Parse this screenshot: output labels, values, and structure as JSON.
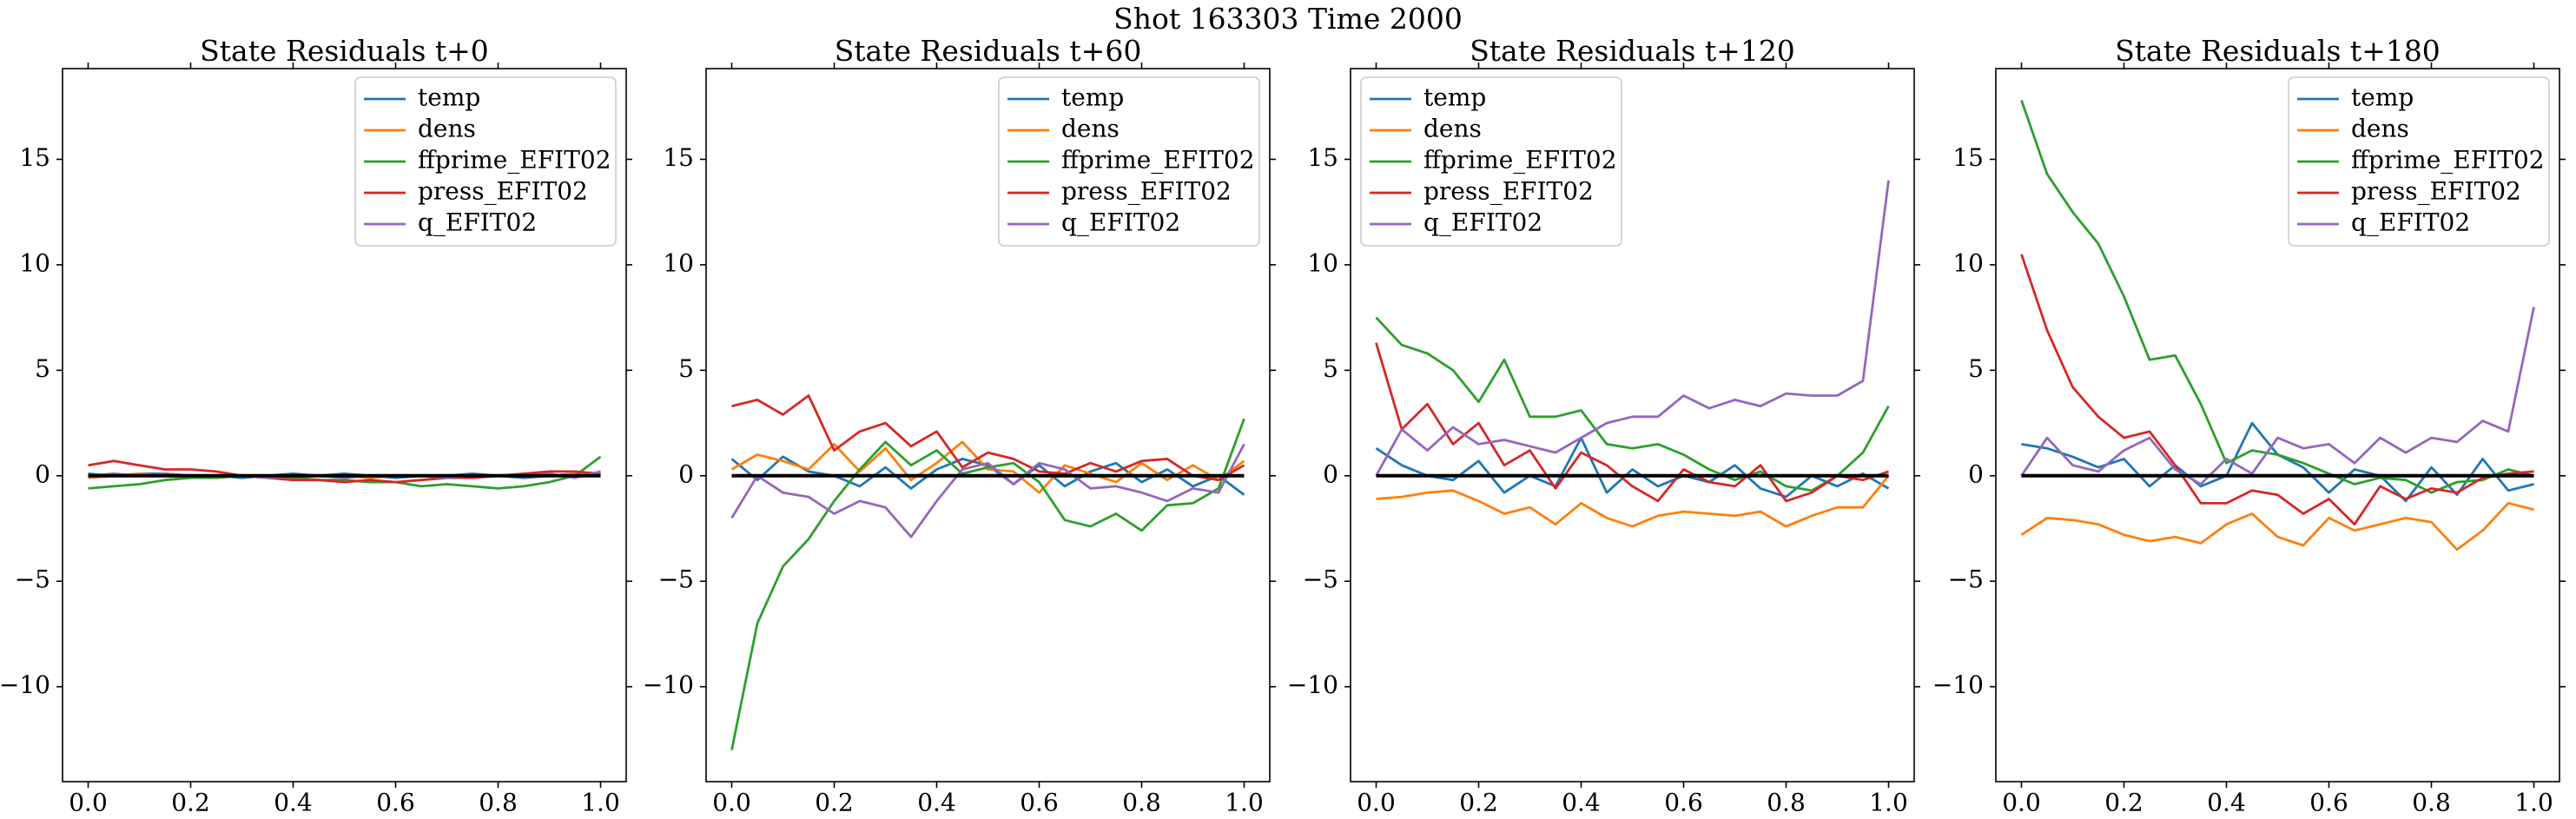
{
  "title": "Shot 163303   Time 2000",
  "chart_data": [
    {
      "type": "line",
      "title": "State Residuals t+0",
      "legend": "upper right",
      "x": [
        0,
        0.05,
        0.1,
        0.15,
        0.2,
        0.25,
        0.3,
        0.35,
        0.4,
        0.45,
        0.5,
        0.55,
        0.6,
        0.65,
        0.7,
        0.75,
        0.8,
        0.85,
        0.9,
        0.95,
        1
      ],
      "xlim": [
        -0.05,
        1.05
      ],
      "xticks": [
        {
          "value": 0,
          "label": "0.0"
        },
        0.2,
        0.4,
        0.6,
        0.8,
        {
          "value": 1,
          "label": "1.0"
        }
      ],
      "ylim": [
        -14.5,
        19.3
      ],
      "yticks": [
        {
          "value": -10,
          "label": "−10"
        },
        {
          "value": -5,
          "label": "−5"
        },
        0,
        5,
        10,
        15
      ],
      "reference_line": {
        "y": 0,
        "color": "#000000"
      },
      "series": [
        {
          "name": "temp",
          "color": "#1f77b4",
          "values": [
            0.1,
            0,
            0.1,
            0.1,
            0,
            0,
            -0.1,
            0,
            0.1,
            0,
            0.1,
            0,
            -0.1,
            0,
            0,
            0.1,
            0,
            -0.1,
            0,
            0.1,
            0
          ]
        },
        {
          "name": "dens",
          "color": "#ff7f0e",
          "values": [
            -0.1,
            0,
            0.1,
            0,
            0,
            -0.1,
            0,
            0,
            -0.1,
            0,
            0,
            -0.1,
            0,
            0,
            0,
            -0.1,
            0,
            0,
            0,
            0.1,
            0.1
          ]
        },
        {
          "name": "ffprime_EFIT02",
          "color": "#2ca02c",
          "values": [
            -0.6,
            -0.5,
            -0.4,
            -0.2,
            -0.1,
            -0.1,
            0,
            0,
            -0.1,
            -0.2,
            -0.2,
            -0.3,
            -0.3,
            -0.5,
            -0.4,
            -0.5,
            -0.6,
            -0.5,
            -0.3,
            0,
            0.9
          ]
        },
        {
          "name": "press_EFIT02",
          "color": "#d62728",
          "values": [
            0.5,
            0.7,
            0.5,
            0.3,
            0.3,
            0.2,
            0,
            -0.1,
            -0.2,
            -0.2,
            -0.3,
            -0.2,
            -0.3,
            -0.2,
            -0.1,
            -0.1,
            0,
            0.1,
            0.2,
            0.2,
            0.1
          ]
        },
        {
          "name": "q_EFIT02",
          "color": "#9467bd",
          "values": [
            0,
            0.1,
            0,
            0.1,
            0,
            0,
            0,
            -0.1,
            0,
            0,
            -0.1,
            0,
            0,
            0,
            -0.1,
            0,
            0,
            0,
            0.1,
            -0.1,
            0.2
          ]
        }
      ]
    },
    {
      "type": "line",
      "title": "State Residuals t+60",
      "legend": "upper right",
      "x": [
        0,
        0.05,
        0.1,
        0.15,
        0.2,
        0.25,
        0.3,
        0.35,
        0.4,
        0.45,
        0.5,
        0.55,
        0.6,
        0.65,
        0.7,
        0.75,
        0.8,
        0.85,
        0.9,
        0.95,
        1
      ],
      "xlim": [
        -0.05,
        1.05
      ],
      "xticks": [
        {
          "value": 0,
          "label": "0.0"
        },
        0.2,
        0.4,
        0.6,
        0.8,
        {
          "value": 1,
          "label": "1.0"
        }
      ],
      "ylim": [
        -14.5,
        19.3
      ],
      "yticks": [
        {
          "value": -10,
          "label": "−10"
        },
        {
          "value": -5,
          "label": "−5"
        },
        0,
        5,
        10,
        15
      ],
      "reference_line": {
        "y": 0,
        "color": "#000000"
      },
      "series": [
        {
          "name": "temp",
          "color": "#1f77b4",
          "values": [
            0.8,
            -0.2,
            0.9,
            0.2,
            0,
            -0.5,
            0.4,
            -0.6,
            0.3,
            0.8,
            0.5,
            -0.4,
            0.5,
            -0.5,
            0.2,
            0.6,
            -0.3,
            0.3,
            -0.5,
            0,
            -0.9
          ]
        },
        {
          "name": "dens",
          "color": "#ff7f0e",
          "values": [
            0.3,
            1.0,
            0.7,
            0.3,
            1.5,
            0.2,
            1.3,
            -0.2,
            0.6,
            1.6,
            0.3,
            0.2,
            -0.8,
            0.5,
            0.1,
            -0.3,
            0.6,
            -0.2,
            0.5,
            -0.2,
            0.7
          ]
        },
        {
          "name": "ffprime_EFIT02",
          "color": "#2ca02c",
          "values": [
            -13,
            -7,
            -4.3,
            -3,
            -1.2,
            0.3,
            1.6,
            0.5,
            1.2,
            0.1,
            0.4,
            0.6,
            -0.3,
            -2.1,
            -2.4,
            -1.8,
            -2.6,
            -1.4,
            -1.3,
            -0.6,
            2.7
          ]
        },
        {
          "name": "press_EFIT02",
          "color": "#d62728",
          "values": [
            3.3,
            3.6,
            2.9,
            3.8,
            1.2,
            2.1,
            2.5,
            1.4,
            2.1,
            0.4,
            1.1,
            0.8,
            0.2,
            0.1,
            0.6,
            0.2,
            0.7,
            0.8,
            0,
            -0.2,
            0.5
          ]
        },
        {
          "name": "q_EFIT02",
          "color": "#9467bd",
          "values": [
            -2,
            0,
            -0.8,
            -1,
            -1.8,
            -1.2,
            -1.5,
            -2.9,
            -1.2,
            0.3,
            0.6,
            -0.4,
            0.6,
            0.3,
            -0.6,
            -0.5,
            -0.8,
            -1.2,
            -0.6,
            -0.8,
            1.5
          ]
        }
      ]
    },
    {
      "type": "line",
      "title": "State Residuals t+120",
      "legend": "upper left",
      "x": [
        0,
        0.05,
        0.1,
        0.15,
        0.2,
        0.25,
        0.3,
        0.35,
        0.4,
        0.45,
        0.5,
        0.55,
        0.6,
        0.65,
        0.7,
        0.75,
        0.8,
        0.85,
        0.9,
        0.95,
        1
      ],
      "xlim": [
        -0.05,
        1.05
      ],
      "xticks": [
        {
          "value": 0,
          "label": "0.0"
        },
        0.2,
        0.4,
        0.6,
        0.8,
        {
          "value": 1,
          "label": "1.0"
        }
      ],
      "ylim": [
        -14.5,
        19.3
      ],
      "yticks": [
        {
          "value": -10,
          "label": "−10"
        },
        {
          "value": -5,
          "label": "−5"
        },
        0,
        5,
        10,
        15
      ],
      "reference_line": {
        "y": 0,
        "color": "#000000"
      },
      "series": [
        {
          "name": "temp",
          "color": "#1f77b4",
          "values": [
            1.3,
            0.5,
            0,
            -0.2,
            0.7,
            -0.8,
            0,
            -0.5,
            1.8,
            -0.8,
            0.3,
            -0.5,
            0,
            -0.3,
            0.5,
            -0.6,
            -1,
            0,
            -0.5,
            0.1,
            -0.6
          ]
        },
        {
          "name": "dens",
          "color": "#ff7f0e",
          "values": [
            -1.1,
            -1.0,
            -0.8,
            -0.7,
            -1.2,
            -1.8,
            -1.5,
            -2.3,
            -1.3,
            -2.0,
            -2.4,
            -1.9,
            -1.7,
            -1.8,
            -1.9,
            -1.7,
            -2.4,
            -1.9,
            -1.5,
            -1.5,
            0
          ]
        },
        {
          "name": "ffprime_EFIT02",
          "color": "#2ca02c",
          "values": [
            7.5,
            6.2,
            5.8,
            5.0,
            3.5,
            5.5,
            2.8,
            2.8,
            3.1,
            1.5,
            1.3,
            1.5,
            1.0,
            0.3,
            -0.2,
            0.2,
            -0.5,
            -0.7,
            0,
            1.1,
            3.3
          ]
        },
        {
          "name": "press_EFIT02",
          "color": "#d62728",
          "values": [
            6.3,
            2.2,
            3.4,
            1.5,
            2.5,
            0.5,
            1.2,
            -0.6,
            1.1,
            0.5,
            -0.5,
            -1.2,
            0.3,
            -0.3,
            -0.5,
            0.5,
            -1.2,
            -0.8,
            0,
            -0.2,
            0.2
          ]
        },
        {
          "name": "q_EFIT02",
          "color": "#9467bd",
          "values": [
            0,
            2.2,
            1.2,
            2.3,
            1.5,
            1.7,
            1.4,
            1.1,
            1.8,
            2.5,
            2.8,
            2.8,
            3.8,
            3.2,
            3.6,
            3.3,
            3.9,
            3.8,
            3.8,
            4.5,
            14
          ]
        }
      ]
    },
    {
      "type": "line",
      "title": "State Residuals t+180",
      "legend": "upper right",
      "x": [
        0,
        0.05,
        0.1,
        0.15,
        0.2,
        0.25,
        0.3,
        0.35,
        0.4,
        0.45,
        0.5,
        0.55,
        0.6,
        0.65,
        0.7,
        0.75,
        0.8,
        0.85,
        0.9,
        0.95,
        1
      ],
      "xlim": [
        -0.05,
        1.05
      ],
      "xticks": [
        {
          "value": 0,
          "label": "0.0"
        },
        0.2,
        0.4,
        0.6,
        0.8,
        {
          "value": 1,
          "label": "1.0"
        }
      ],
      "ylim": [
        -14.5,
        19.3
      ],
      "yticks": [
        {
          "value": -10,
          "label": "−10"
        },
        {
          "value": -5,
          "label": "−5"
        },
        0,
        5,
        10,
        15
      ],
      "reference_line": {
        "y": 0,
        "color": "#000000"
      },
      "series": [
        {
          "name": "temp",
          "color": "#1f77b4",
          "values": [
            1.5,
            1.3,
            0.9,
            0.4,
            0.8,
            -0.5,
            0.5,
            -0.5,
            0,
            2.5,
            1.0,
            0.4,
            -0.8,
            0.3,
            0,
            -1.2,
            0.4,
            -0.9,
            0.8,
            -0.7,
            -0.4
          ]
        },
        {
          "name": "dens",
          "color": "#ff7f0e",
          "values": [
            -2.8,
            -2.0,
            -2.1,
            -2.3,
            -2.8,
            -3.1,
            -2.9,
            -3.2,
            -2.3,
            -1.8,
            -2.9,
            -3.3,
            -2.0,
            -2.6,
            -2.3,
            -2.0,
            -2.2,
            -3.5,
            -2.6,
            -1.3,
            -1.6
          ]
        },
        {
          "name": "ffprime_EFIT02",
          "color": "#2ca02c",
          "values": [
            17.8,
            14.3,
            12.5,
            11.0,
            8.5,
            5.5,
            5.7,
            3.4,
            0.6,
            1.2,
            1.0,
            0.6,
            0.1,
            -0.4,
            -0.1,
            -0.2,
            -0.8,
            -0.3,
            -0.2,
            0.3,
            0
          ]
        },
        {
          "name": "press_EFIT02",
          "color": "#d62728",
          "values": [
            10.5,
            6.9,
            4.2,
            2.8,
            1.8,
            2.1,
            0.5,
            -1.3,
            -1.3,
            -0.7,
            -0.9,
            -1.8,
            -1.1,
            -2.3,
            -0.5,
            -1.1,
            -0.6,
            -0.8,
            -0.1,
            0.1,
            0.2
          ]
        },
        {
          "name": "q_EFIT02",
          "color": "#9467bd",
          "values": [
            0,
            1.8,
            0.5,
            0.2,
            1.2,
            1.8,
            0.3,
            -0.4,
            0.8,
            0.1,
            1.8,
            1.3,
            1.5,
            0.6,
            1.8,
            1.1,
            1.8,
            1.6,
            2.6,
            2.1,
            8
          ]
        }
      ]
    }
  ]
}
